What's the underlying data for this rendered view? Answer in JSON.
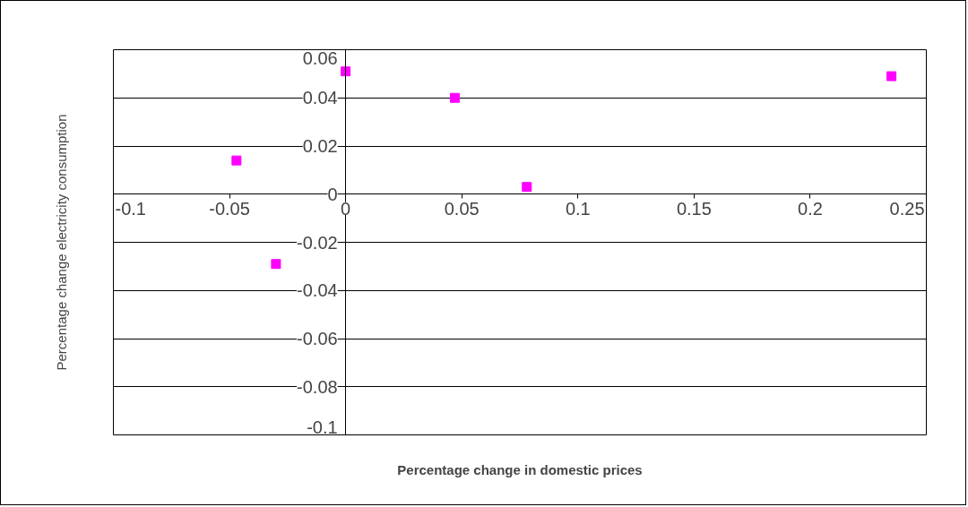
{
  "chart_data": {
    "type": "scatter",
    "xlabel": "Percentage change in domestic prices",
    "ylabel": "Percentage change electricity consumption",
    "x": [
      -0.047,
      -0.03,
      0,
      0.047,
      0.078,
      0.235
    ],
    "series": [
      {
        "color": "#ff00ff",
        "values": [
          0.014,
          -0.029,
          0.051,
          0.04,
          0.003,
          0.049
        ]
      }
    ],
    "xlim": [
      -0.1,
      0.25
    ],
    "ylim": [
      -0.1,
      0.06
    ],
    "xticks": [
      -0.1,
      -0.05,
      0,
      0.05,
      0.1,
      0.15,
      0.2,
      0.25
    ],
    "yticks": [
      -0.1,
      -0.08,
      -0.06,
      -0.04,
      -0.02,
      0,
      0.02,
      0.04,
      0.06
    ],
    "grid": "y",
    "marker": "square"
  }
}
